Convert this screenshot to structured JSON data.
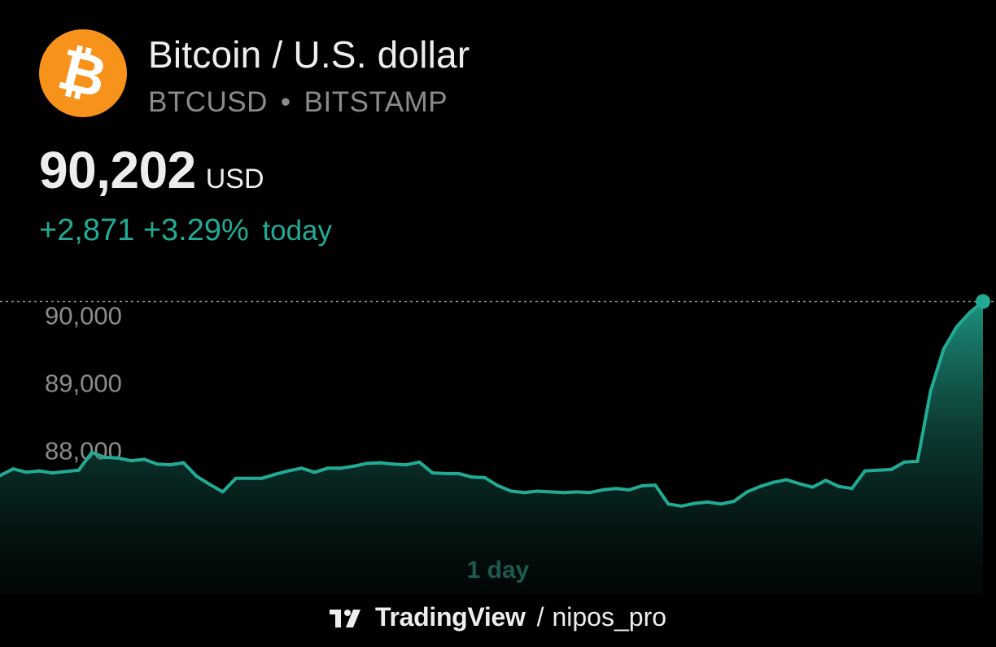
{
  "header": {
    "logo_glyph": "₿",
    "logo_color": "#f7931a",
    "title": "Bitcoin / U.S. dollar",
    "symbol": "BTCUSD",
    "separator": "•",
    "exchange": "BITSTAMP"
  },
  "quote": {
    "price": "90,202",
    "currency": "USD",
    "change_abs": "+2,871",
    "change_pct": "+3.29%",
    "change_period": "today",
    "positive_color": "#22ab94"
  },
  "chart_data": {
    "type": "area",
    "period_label": "1 day",
    "y_ticks": [
      {
        "value": 90000,
        "label": "90,000"
      },
      {
        "value": 89000,
        "label": "89,000"
      },
      {
        "value": 88000,
        "label": "88,000"
      }
    ],
    "ylim": [
      86000,
      90400
    ],
    "last_value": 90202,
    "line_color": "#22ab94",
    "values": [
      87630,
      87730,
      87680,
      87700,
      87670,
      87690,
      87710,
      87970,
      87900,
      87890,
      87850,
      87870,
      87800,
      87790,
      87820,
      87620,
      87500,
      87390,
      87590,
      87590,
      87590,
      87650,
      87700,
      87740,
      87680,
      87740,
      87740,
      87770,
      87810,
      87820,
      87800,
      87790,
      87830,
      87670,
      87660,
      87660,
      87610,
      87600,
      87480,
      87400,
      87380,
      87400,
      87390,
      87380,
      87390,
      87380,
      87420,
      87440,
      87420,
      87480,
      87490,
      87210,
      87180,
      87220,
      87240,
      87210,
      87250,
      87390,
      87470,
      87530,
      87570,
      87510,
      87460,
      87560,
      87470,
      87440,
      87700,
      87710,
      87720,
      87830,
      87840,
      88880,
      89500,
      89830,
      90040,
      90202
    ]
  },
  "footer": {
    "brand": "TradingView",
    "slash": "/",
    "author": "nipos_pro"
  }
}
